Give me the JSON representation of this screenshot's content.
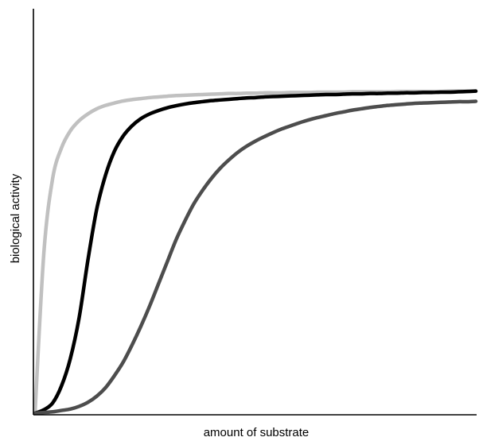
{
  "chart_data": {
    "type": "line",
    "xlabel": "amount of substrate",
    "ylabel": "biological activity",
    "xlim": [
      0,
      1
    ],
    "ylim": [
      0,
      1
    ],
    "grid": false,
    "legend": "none",
    "x": [
      0,
      0.02,
      0.04,
      0.06,
      0.08,
      0.1,
      0.12,
      0.14,
      0.16,
      0.18,
      0.2,
      0.22,
      0.24,
      0.26,
      0.28,
      0.3,
      0.32,
      0.34,
      0.36,
      0.38,
      0.4,
      0.42,
      0.44,
      0.46,
      0.48,
      0.5,
      0.52,
      0.54,
      0.56,
      0.58,
      0.6,
      0.62,
      0.64,
      0.66,
      0.68,
      0.7,
      0.72,
      0.74,
      0.76,
      0.78,
      0.8,
      0.82,
      0.84,
      0.86,
      0.88,
      0.9,
      0.92,
      0.94,
      0.96,
      0.98,
      1.0
    ],
    "series": [
      {
        "color": "#c0c0c0",
        "values": [
          0.0,
          0.47,
          0.69,
          0.78,
          0.83,
          0.86,
          0.88,
          0.895,
          0.905,
          0.912,
          0.918,
          0.922,
          0.925,
          0.928,
          0.93,
          0.932,
          0.934,
          0.935,
          0.936,
          0.937,
          0.938,
          0.939,
          0.94,
          0.94,
          0.941,
          0.941,
          0.942,
          0.942,
          0.942,
          0.943,
          0.943,
          0.943,
          0.944,
          0.944,
          0.944,
          0.944,
          0.945,
          0.945,
          0.945,
          0.945,
          0.945,
          0.946,
          0.946,
          0.946,
          0.946,
          0.946,
          0.946,
          0.947,
          0.947,
          0.947,
          0.947
        ]
      },
      {
        "color": "#000000",
        "values": [
          0.0,
          0.01,
          0.03,
          0.08,
          0.16,
          0.28,
          0.45,
          0.6,
          0.7,
          0.77,
          0.815,
          0.845,
          0.866,
          0.88,
          0.89,
          0.898,
          0.904,
          0.909,
          0.913,
          0.916,
          0.919,
          0.921,
          0.923,
          0.925,
          0.927,
          0.928,
          0.93,
          0.931,
          0.932,
          0.933,
          0.934,
          0.935,
          0.936,
          0.937,
          0.937,
          0.938,
          0.939,
          0.939,
          0.94,
          0.94,
          0.941,
          0.941,
          0.942,
          0.942,
          0.943,
          0.943,
          0.944,
          0.944,
          0.945,
          0.946,
          0.947
        ]
      },
      {
        "color": "#4d4d4d",
        "values": [
          0.0,
          0.002,
          0.004,
          0.008,
          0.012,
          0.02,
          0.032,
          0.05,
          0.075,
          0.11,
          0.15,
          0.2,
          0.255,
          0.315,
          0.38,
          0.445,
          0.51,
          0.565,
          0.615,
          0.655,
          0.69,
          0.72,
          0.745,
          0.767,
          0.785,
          0.8,
          0.813,
          0.825,
          0.836,
          0.845,
          0.854,
          0.862,
          0.869,
          0.875,
          0.881,
          0.886,
          0.891,
          0.895,
          0.899,
          0.902,
          0.905,
          0.907,
          0.909,
          0.911,
          0.912,
          0.913,
          0.914,
          0.915,
          0.916,
          0.916,
          0.917
        ]
      }
    ]
  }
}
